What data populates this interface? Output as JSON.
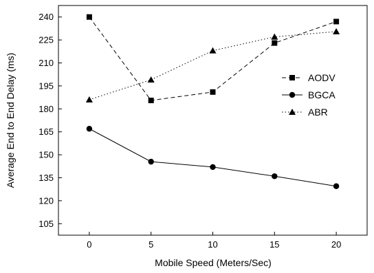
{
  "chart_data": {
    "type": "line",
    "xlabel": "Mobile Speed (Meters/Sec)",
    "ylabel": "Average End to End Delay (ms)",
    "x": [
      0,
      5,
      10,
      15,
      20
    ],
    "xlim": [
      -2.5,
      22.5
    ],
    "ylim": [
      97.5,
      247.5
    ],
    "xticks": [
      0,
      5,
      10,
      15,
      20
    ],
    "yticks": [
      105,
      120,
      135,
      150,
      165,
      180,
      195,
      210,
      225,
      240
    ],
    "grid": false,
    "legend_position": "right",
    "series": [
      {
        "name": "AODV",
        "values": [
          240,
          185.5,
          191,
          223,
          237
        ],
        "marker": "square",
        "dash": "dashed",
        "color": "#000000"
      },
      {
        "name": "BGCA",
        "values": [
          167,
          145.5,
          142,
          136,
          129.5
        ],
        "marker": "circle",
        "dash": "solid",
        "color": "#000000"
      },
      {
        "name": "ABR",
        "values": [
          186,
          199,
          218,
          227,
          230.5
        ],
        "marker": "triangle",
        "dash": "dotted",
        "color": "#000000"
      }
    ]
  }
}
